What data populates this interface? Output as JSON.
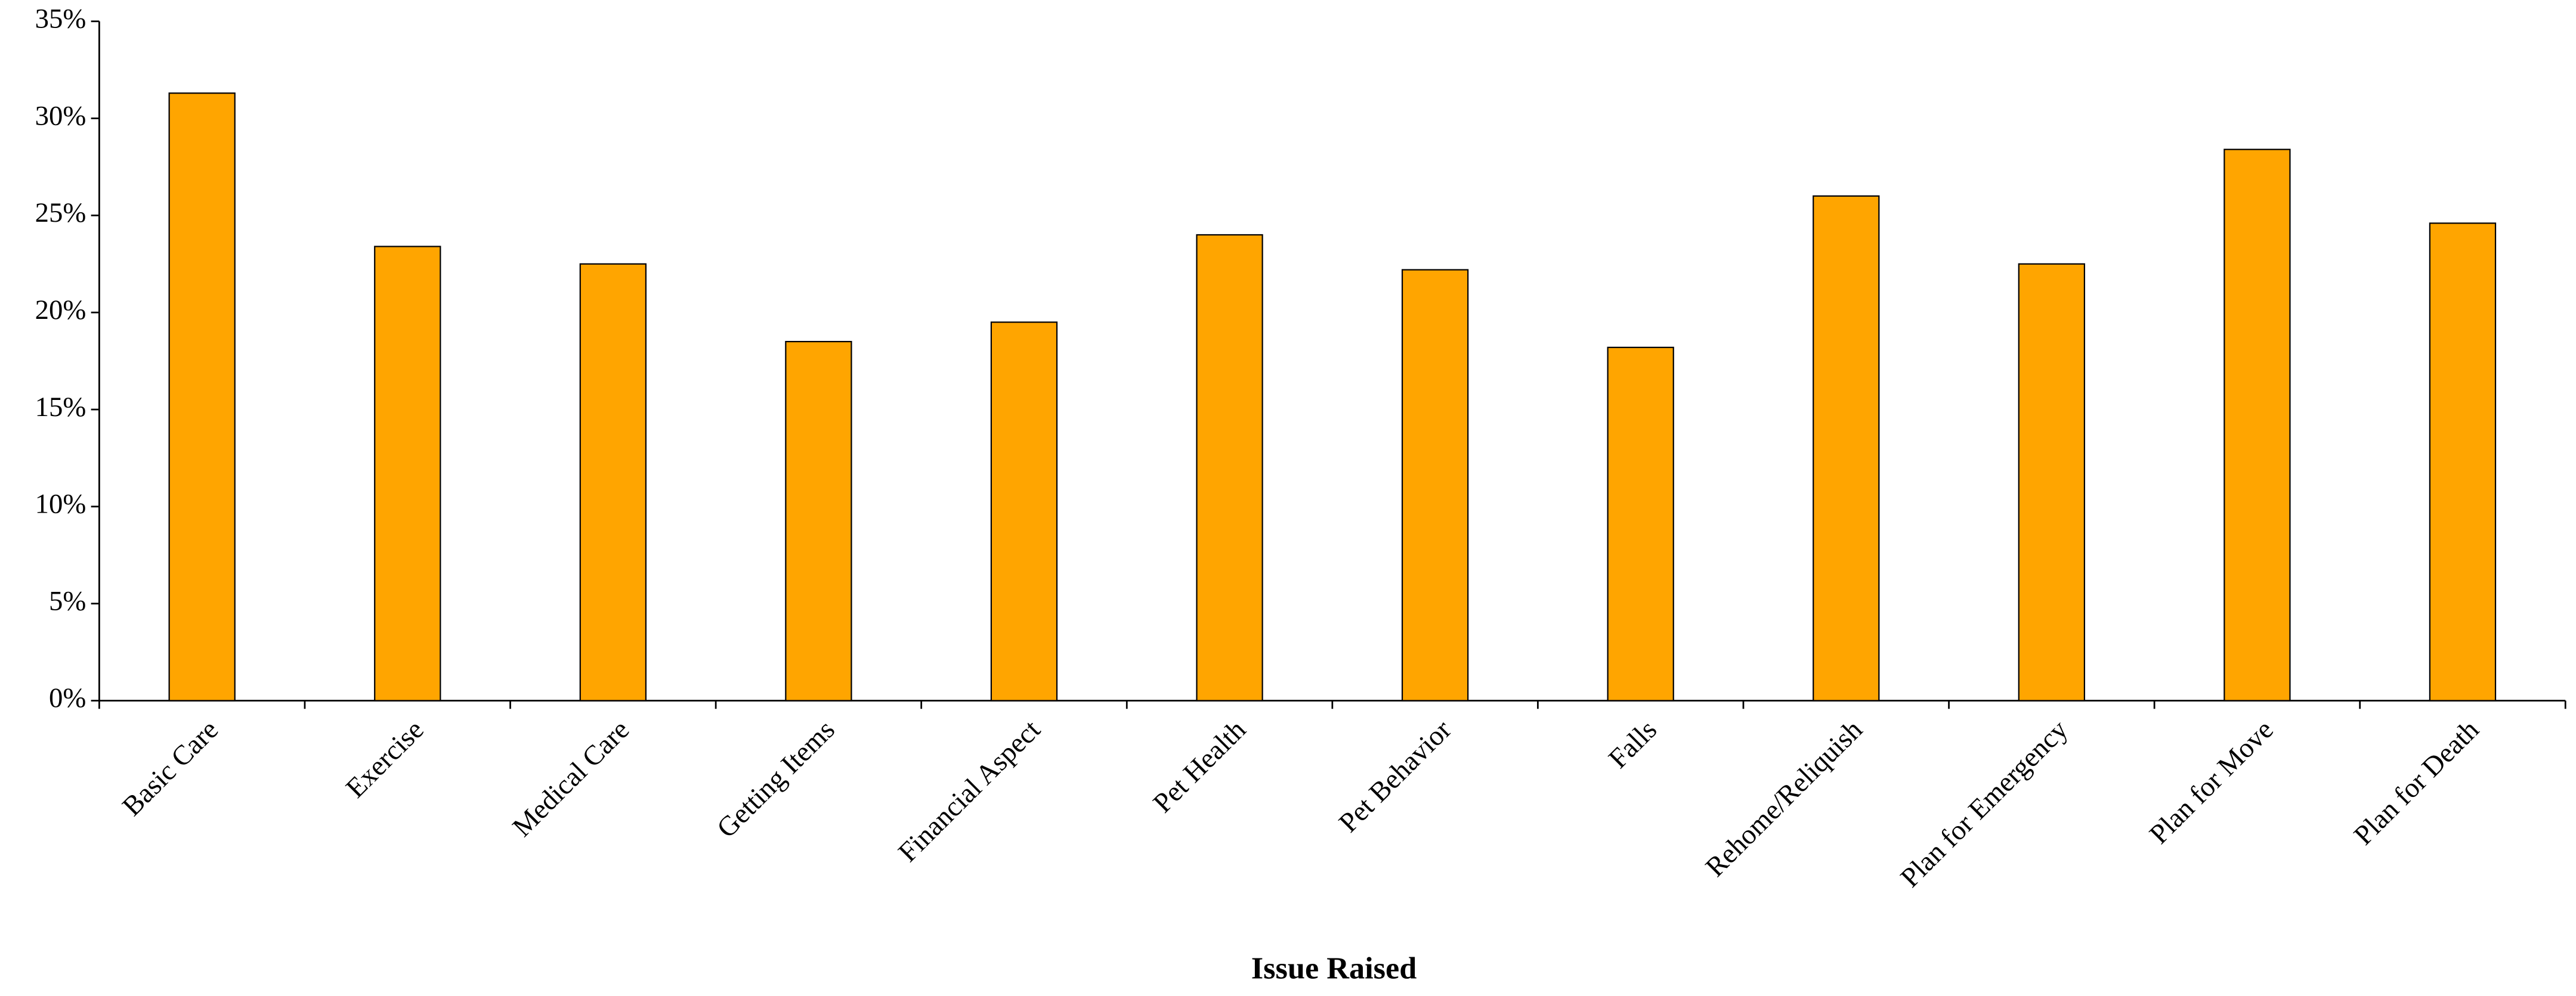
{
  "chart_data": {
    "type": "bar",
    "x_label": "Issue Raised",
    "categories": [
      "Basic Care",
      "Exercise",
      "Medical Care",
      "Getting Items",
      "Financial Aspect",
      "Pet Health",
      "Pet Behavior",
      "Falls",
      "Rehome/Reliquish",
      "Plan for Emergency",
      "Plan for Move",
      "Plan for Death"
    ],
    "values": [
      31.3,
      23.4,
      22.5,
      18.5,
      19.5,
      24.0,
      22.2,
      18.2,
      26.0,
      22.5,
      28.4,
      24.6
    ],
    "color": "#ffa500",
    "ylim": [
      0,
      35
    ],
    "yticks": [
      {
        "value": 0,
        "label": "0%"
      },
      {
        "value": 5,
        "label": "5%"
      },
      {
        "value": 10,
        "label": "10%"
      },
      {
        "value": 15,
        "label": "15%"
      },
      {
        "value": 20,
        "label": "20%"
      },
      {
        "value": 25,
        "label": "25%"
      },
      {
        "value": 30,
        "label": "30%"
      },
      {
        "value": 35,
        "label": "35%"
      }
    ],
    "grid": false
  }
}
